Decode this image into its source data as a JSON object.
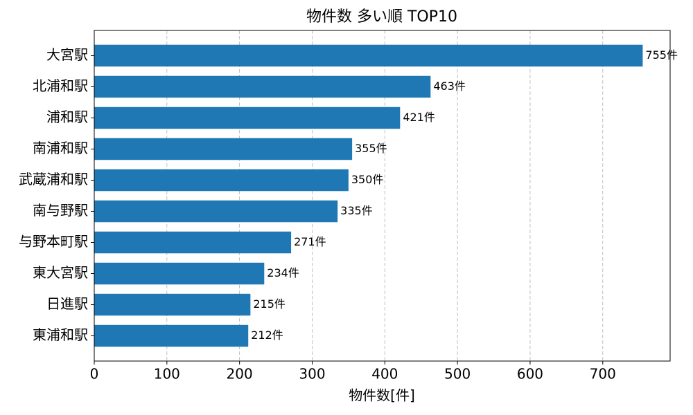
{
  "chart_data": {
    "type": "barh",
    "title": "物件数 多い順 TOP10",
    "xlabel": "物件数[件]",
    "categories": [
      "大宮駅",
      "北浦和駅",
      "浦和駅",
      "南浦和駅",
      "武蔵浦和駅",
      "南与野駅",
      "与野本町駅",
      "東大宮駅",
      "日進駅",
      "東浦和駅"
    ],
    "values": [
      755,
      463,
      421,
      355,
      350,
      335,
      271,
      234,
      215,
      212
    ],
    "value_labels": [
      "755件",
      "463件",
      "421件",
      "355件",
      "350件",
      "335件",
      "271件",
      "234件",
      "215件",
      "212件"
    ],
    "color": "#1f77b4",
    "xlim": [
      0,
      792.75
    ],
    "xticks": [
      0,
      100,
      200,
      300,
      400,
      500,
      600,
      700
    ],
    "grid": true
  }
}
